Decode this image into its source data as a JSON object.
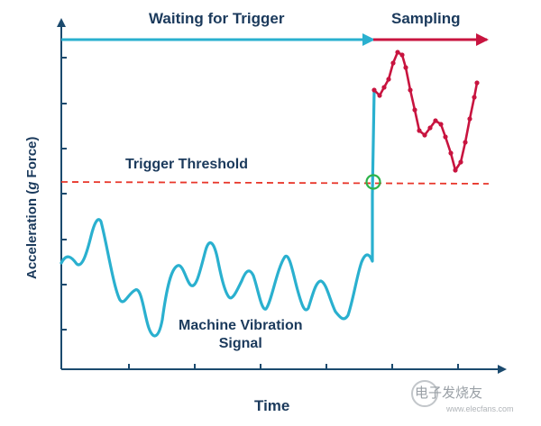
{
  "labels": {
    "waiting": "Waiting for Trigger",
    "sampling": "Sampling",
    "threshold": "Trigger Threshold",
    "signal_line1": "Machine Vibration",
    "signal_line2": "Signal",
    "x_axis": "Time",
    "y_axis_main": "Acceleration (",
    "y_axis_italic": "g",
    "y_axis_rest": " Force)"
  },
  "watermark": {
    "text": "电子发烧友",
    "sub": "www.elecfans.com"
  },
  "colors": {
    "axis": "#1b4a6e",
    "signal": "#2ab0cf",
    "sampling": "#c8143f",
    "threshold": "#e8362a",
    "trigger_marker": "#2db34a",
    "label": "#1b3a5c"
  }
}
